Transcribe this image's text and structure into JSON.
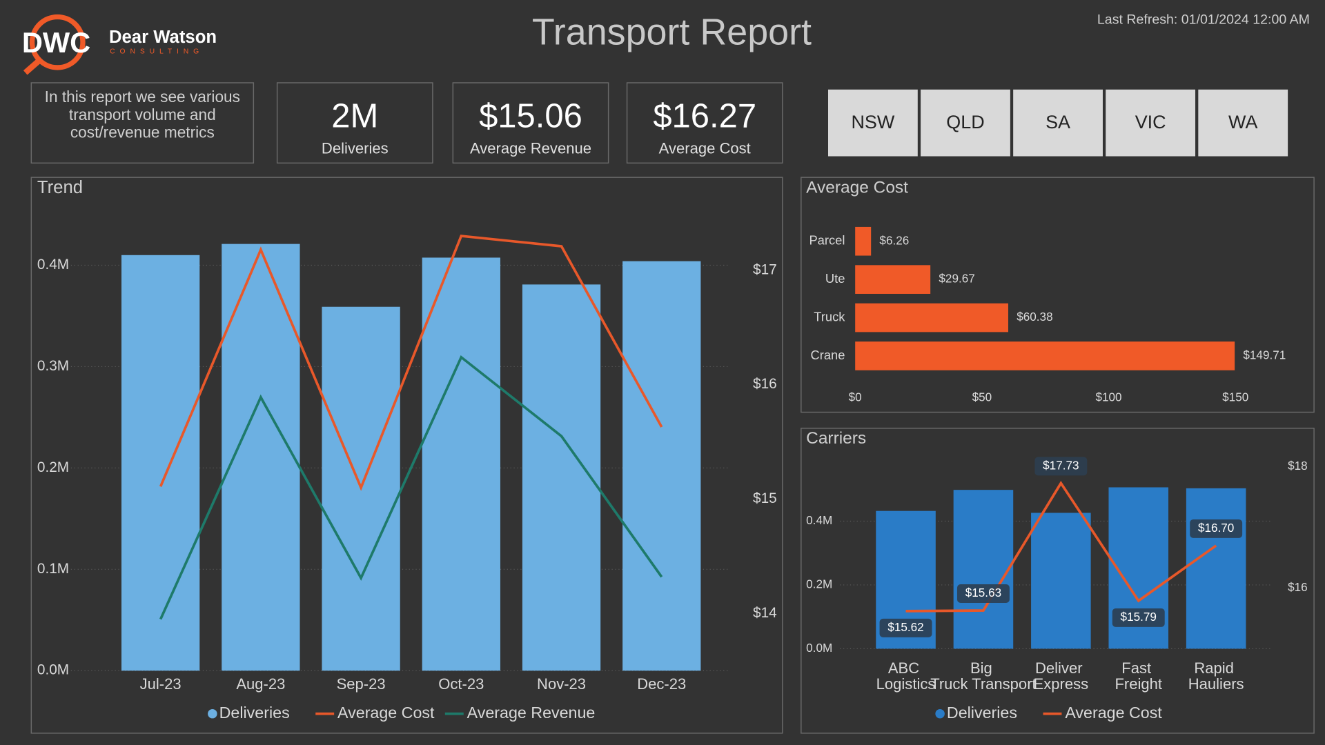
{
  "header": {
    "logo_mark": "DWC",
    "logo_name": "Dear Watson",
    "logo_tagline": "CONSULTING",
    "title": "Transport Report",
    "last_refresh": "Last Refresh: 01/01/2024 12:00 AM"
  },
  "intro": "In this report we see various transport volume and cost/revenue metrics",
  "kpis": [
    {
      "value": "2M",
      "label": "Deliveries"
    },
    {
      "value": "$15.06",
      "label": "Average Revenue"
    },
    {
      "value": "$16.27",
      "label": "Average Cost"
    }
  ],
  "slicers": [
    "NSW",
    "QLD",
    "SA",
    "VIC",
    "WA"
  ],
  "chart_data": [
    {
      "type": "combo",
      "title": "Trend",
      "categories": [
        "Jul-23",
        "Aug-23",
        "Sep-23",
        "Oct-23",
        "Nov-23",
        "Dec-23"
      ],
      "series": [
        {
          "name": "Deliveries",
          "type": "bar",
          "color": "#6cb0e2",
          "values": [
            410000,
            421000,
            359000,
            407500,
            381000,
            404000
          ]
        },
        {
          "name": "Average Cost",
          "type": "line",
          "axis": "y2",
          "color": "#e8582a",
          "values": [
            15.11,
            17.18,
            15.1,
            17.3,
            17.21,
            15.63
          ]
        },
        {
          "name": "Average Revenue",
          "type": "line",
          "axis": "y2",
          "color": "#1e7a6a",
          "values": [
            13.95,
            15.89,
            14.31,
            16.24,
            15.55,
            14.32
          ]
        }
      ],
      "ylim": [
        0,
        430000
      ],
      "yticks": [
        {
          "value": 0,
          "label": "0.0M"
        },
        {
          "value": 100000,
          "label": "0.1M"
        },
        {
          "value": 200000,
          "label": "0.2M"
        },
        {
          "value": 300000,
          "label": "0.3M"
        },
        {
          "value": 400000,
          "label": "0.4M"
        }
      ],
      "y2lim": [
        13.5,
        17.31
      ],
      "y2ticks": [
        {
          "value": 14,
          "label": "$14"
        },
        {
          "value": 15,
          "label": "$15"
        },
        {
          "value": 16,
          "label": "$16"
        },
        {
          "value": 17,
          "label": "$17"
        }
      ],
      "grid": true
    },
    {
      "type": "hbar",
      "title": "Average Cost",
      "categories": [
        "Parcel",
        "Ute",
        "Truck",
        "Crane"
      ],
      "values": [
        6.26,
        29.67,
        60.38,
        149.71
      ],
      "value_labels": [
        "$6.26",
        "$29.67",
        "$60.38",
        "$149.71"
      ],
      "color": "#f05a28",
      "xlim": [
        0,
        165
      ],
      "xticks": [
        {
          "value": 0,
          "label": "$0"
        },
        {
          "value": 50,
          "label": "$50"
        },
        {
          "value": 100,
          "label": "$100"
        },
        {
          "value": 150,
          "label": "$150"
        }
      ]
    },
    {
      "type": "combo",
      "title": "Carriers",
      "categories": [
        "ABC Logistics",
        "Big Truck Transport",
        "Deliver Express",
        "Fast Freight",
        "Rapid Hauliers"
      ],
      "series": [
        {
          "name": "Deliveries",
          "type": "bar",
          "color": "#2a7cc7",
          "values": [
            432000,
            498000,
            426000,
            506000,
            503000
          ]
        },
        {
          "name": "Average Cost",
          "type": "line",
          "axis": "y2",
          "color": "#e8582a",
          "values": [
            15.62,
            15.63,
            17.73,
            15.79,
            16.7
          ],
          "value_labels": [
            "$15.62",
            "$15.63",
            "$17.73",
            "$15.79",
            "$16.70"
          ]
        }
      ],
      "ylim": [
        0,
        580000
      ],
      "yticks": [
        {
          "value": 0,
          "label": "0.0M"
        },
        {
          "value": 200000,
          "label": "0.2M"
        },
        {
          "value": 400000,
          "label": "0.4M"
        }
      ],
      "y2lim": [
        15,
        18.05
      ],
      "y2ticks": [
        {
          "value": 16,
          "label": "$16"
        },
        {
          "value": 18,
          "label": "$18"
        }
      ],
      "grid": true
    }
  ]
}
